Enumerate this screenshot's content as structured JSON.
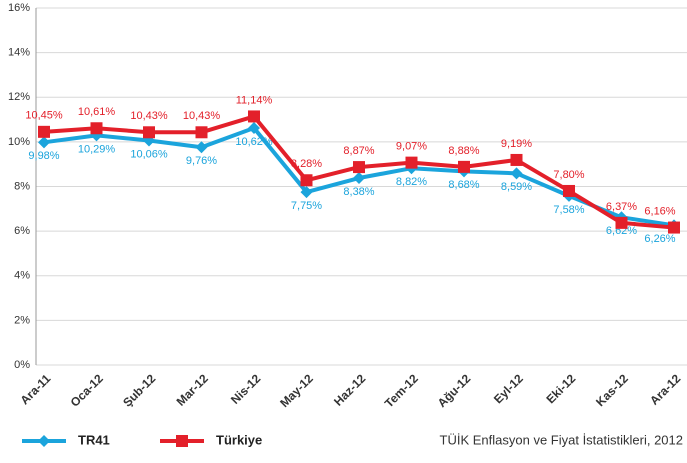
{
  "chart_data": {
    "type": "line",
    "categories": [
      "Ara-11",
      "Oca-12",
      "Şub-12",
      "Mar-12",
      "Nis-12",
      "May-12",
      "Haz-12",
      "Tem-12",
      "Ağu-12",
      "Eyl-12",
      "Eki-12",
      "Kas-12",
      "Ara-12"
    ],
    "series": [
      {
        "name": "TR41",
        "color": "#1ba4dc",
        "marker": "diamond",
        "values": [
          9.98,
          10.29,
          10.06,
          9.76,
          10.62,
          7.75,
          8.38,
          8.82,
          8.68,
          8.59,
          7.58,
          6.62,
          6.26
        ],
        "value_labels": [
          "9,98%",
          "10,29%",
          "10,06%",
          "9,76%",
          "10,62%",
          "7,75%",
          "8,38%",
          "8,82%",
          "8,68%",
          "8,59%",
          "7,58%",
          "6,62%",
          "6,26%"
        ]
      },
      {
        "name": "Türkiye",
        "color": "#e3202a",
        "marker": "square",
        "values": [
          10.45,
          10.61,
          10.43,
          10.43,
          11.14,
          8.28,
          8.87,
          9.07,
          8.88,
          9.19,
          7.8,
          6.37,
          6.16
        ],
        "value_labels": [
          "10,45%",
          "10,61%",
          "10,43%",
          "10,43%",
          "11,14%",
          "8,28%",
          "8,87%",
          "9,07%",
          "8,88%",
          "9,19%",
          "7,80%",
          "6,37%",
          "6,16%"
        ]
      }
    ],
    "ylim": [
      0,
      16
    ],
    "yticks": [
      {
        "value": 0,
        "label": "0%"
      },
      {
        "value": 2,
        "label": "2%"
      },
      {
        "value": 4,
        "label": "4%"
      },
      {
        "value": 6,
        "label": "6%"
      },
      {
        "value": 8,
        "label": "8%"
      },
      {
        "value": 10,
        "label": "10%"
      },
      {
        "value": 12,
        "label": "12%"
      },
      {
        "value": 14,
        "label": "14%"
      },
      {
        "value": 16,
        "label": "16%"
      }
    ],
    "grid": true,
    "legend": "bottom-left",
    "source": "TÜİK Enflasyon ve Fiyat İstatistikleri, 2012"
  }
}
